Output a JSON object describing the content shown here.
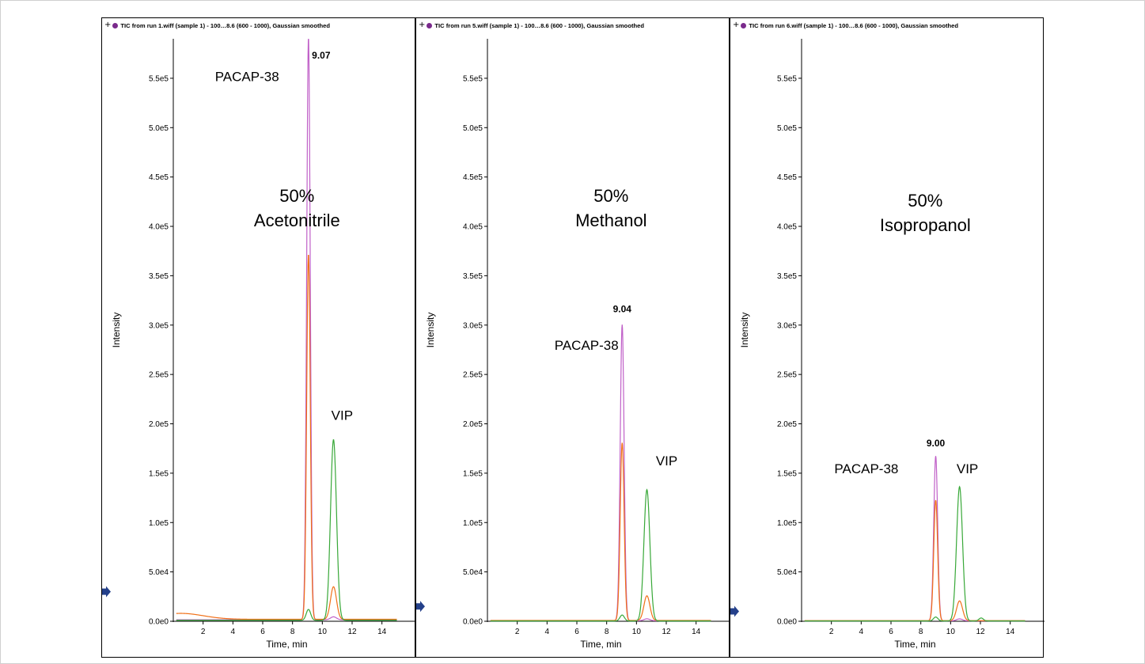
{
  "chart_data": [
    {
      "type": "line",
      "header": "TIC from run 1.wiff (sample 1) - 100…8.6 (600 - 1000), Gaussian smoothed",
      "xlabel": "Time, min",
      "ylabel": "Intensity",
      "xlim": [
        0,
        16.3
      ],
      "ylim": [
        0,
        590000
      ],
      "xticks": [
        2,
        4,
        6,
        8,
        10,
        12,
        14
      ],
      "yticks": [
        {
          "value": 0,
          "label": "0.0e0"
        },
        {
          "value": 50000,
          "label": "5.0e4"
        },
        {
          "value": 100000,
          "label": "1.0e5"
        },
        {
          "value": 150000,
          "label": "1.5e5"
        },
        {
          "value": 200000,
          "label": "2.0e5"
        },
        {
          "value": 250000,
          "label": "2.5e5"
        },
        {
          "value": 300000,
          "label": "3.0e5"
        },
        {
          "value": 350000,
          "label": "3.5e5"
        },
        {
          "value": 400000,
          "label": "4.0e5"
        },
        {
          "value": 450000,
          "label": "4.5e5"
        },
        {
          "value": 500000,
          "label": "5.0e5"
        },
        {
          "value": 550000,
          "label": "5.5e5"
        }
      ],
      "marker_y": 30000,
      "condition": [
        "50%",
        "Acetonitrile"
      ],
      "peak_label": "9.07",
      "peak_label_pos": [
        9.3,
        570000
      ],
      "condition_pos": [
        8.3,
        425000
      ],
      "annotations": [
        {
          "text": "PACAP-38",
          "x": 2.8,
          "y": 547000
        },
        {
          "text": "VIP",
          "x": 10.6,
          "y": 204000
        }
      ],
      "series": [
        {
          "color": "#c060c8",
          "baseline": 1500,
          "peaks": [
            [
              9.07,
              590000,
              0.12
            ],
            [
              10.75,
              3000,
              0.2
            ]
          ]
        },
        {
          "color": "#f07018",
          "baseline": 2000,
          "lowbump": [
            0.5,
            6000,
            1.5
          ],
          "peaks": [
            [
              9.07,
              370000,
              0.12
            ],
            [
              10.75,
              33000,
              0.2
            ]
          ]
        },
        {
          "color": "#38a838",
          "baseline": 1000,
          "peaks": [
            [
              9.07,
              11000,
              0.15
            ],
            [
              10.75,
              183000,
              0.2
            ]
          ]
        }
      ]
    },
    {
      "type": "line",
      "header": "TIC from run 5.wiff (sample 1) - 100…8.6 (600 - 1000), Gaussian smoothed",
      "xlabel": "Time, min",
      "ylabel": "Intensity",
      "xlim": [
        0,
        16.3
      ],
      "ylim": [
        0,
        590000
      ],
      "xticks": [
        2,
        4,
        6,
        8,
        10,
        12,
        14
      ],
      "yticks": [
        {
          "value": 0,
          "label": "0.0e0"
        },
        {
          "value": 50000,
          "label": "5.0e4"
        },
        {
          "value": 100000,
          "label": "1.0e5"
        },
        {
          "value": 150000,
          "label": "1.5e5"
        },
        {
          "value": 200000,
          "label": "2.0e5"
        },
        {
          "value": 250000,
          "label": "2.5e5"
        },
        {
          "value": 300000,
          "label": "3.0e5"
        },
        {
          "value": 350000,
          "label": "3.5e5"
        },
        {
          "value": 400000,
          "label": "4.0e5"
        },
        {
          "value": 450000,
          "label": "4.5e5"
        },
        {
          "value": 500000,
          "label": "5.0e5"
        },
        {
          "value": 550000,
          "label": "5.5e5"
        }
      ],
      "marker_y": 15000,
      "condition": [
        "50%",
        "Methanol"
      ],
      "peak_label": "9.04",
      "peak_label_pos": [
        9.04,
        313000
      ],
      "condition_pos": [
        8.3,
        425000
      ],
      "annotations": [
        {
          "text": "PACAP-38",
          "x": 4.5,
          "y": 275000
        },
        {
          "text": "VIP",
          "x": 11.3,
          "y": 158000
        }
      ],
      "series": [
        {
          "color": "#c060c8",
          "baseline": 500,
          "peaks": [
            [
              9.04,
              300000,
              0.13
            ],
            [
              10.7,
              2000,
              0.2
            ]
          ]
        },
        {
          "color": "#f07018",
          "baseline": 800,
          "peaks": [
            [
              9.04,
              180000,
              0.13
            ],
            [
              10.7,
              25000,
              0.2
            ]
          ]
        },
        {
          "color": "#38a838",
          "baseline": 300,
          "peaks": [
            [
              9.04,
              6000,
              0.15
            ],
            [
              10.7,
              133000,
              0.2
            ]
          ]
        }
      ]
    },
    {
      "type": "line",
      "header": "TIC from run 6.wiff (sample 1) - 100…8.6 (600 - 1000), Gaussian smoothed",
      "xlabel": "Time, min",
      "ylabel": "Intensity",
      "xlim": [
        0,
        16.3
      ],
      "ylim": [
        0,
        590000
      ],
      "xticks": [
        2,
        4,
        6,
        8,
        10,
        12,
        14
      ],
      "yticks": [
        {
          "value": 0,
          "label": "0.0e0"
        },
        {
          "value": 50000,
          "label": "5.0e4"
        },
        {
          "value": 100000,
          "label": "1.0e5"
        },
        {
          "value": 150000,
          "label": "1.5e5"
        },
        {
          "value": 200000,
          "label": "2.0e5"
        },
        {
          "value": 250000,
          "label": "2.5e5"
        },
        {
          "value": 300000,
          "label": "3.0e5"
        },
        {
          "value": 350000,
          "label": "3.5e5"
        },
        {
          "value": 400000,
          "label": "4.0e5"
        },
        {
          "value": 450000,
          "label": "4.5e5"
        },
        {
          "value": 500000,
          "label": "5.0e5"
        },
        {
          "value": 550000,
          "label": "5.5e5"
        }
      ],
      "marker_y": 10000,
      "condition": [
        "50%",
        "Isopropanol"
      ],
      "peak_label": "9.00",
      "peak_label_pos": [
        9.0,
        177000
      ],
      "condition_pos": [
        8.3,
        420000
      ],
      "annotations": [
        {
          "text": "PACAP-38",
          "x": 2.2,
          "y": 150000
        },
        {
          "text": "VIP",
          "x": 10.4,
          "y": 150000
        }
      ],
      "series": [
        {
          "color": "#c060c8",
          "baseline": 400,
          "peaks": [
            [
              9.0,
              167000,
              0.13
            ],
            [
              10.6,
              2000,
              0.2
            ]
          ]
        },
        {
          "color": "#f07018",
          "baseline": 600,
          "peaks": [
            [
              9.0,
              122000,
              0.13
            ],
            [
              10.6,
              20000,
              0.2
            ]
          ]
        },
        {
          "color": "#38a838",
          "baseline": 300,
          "peaks": [
            [
              9.0,
              4000,
              0.15
            ],
            [
              10.6,
              136000,
              0.2
            ],
            [
              12.05,
              3000,
              0.15
            ]
          ]
        }
      ]
    }
  ]
}
